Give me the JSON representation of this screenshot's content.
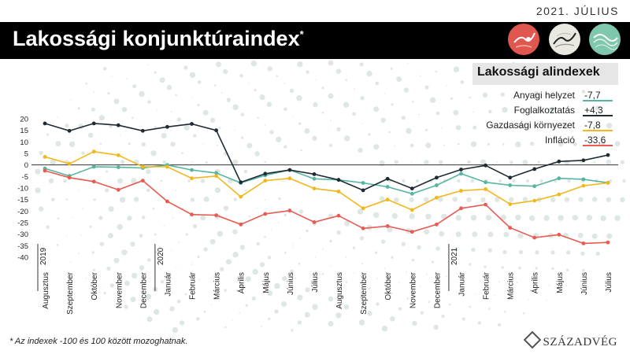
{
  "header": {
    "date": "2021. JÚLIUS",
    "title": "Lakossági konjunktúraindex",
    "title_mark": "*"
  },
  "badges": [
    {
      "icon": "thermometer-icon",
      "color": "#e0574f"
    },
    {
      "icon": "mountain-trend-icon",
      "color": "#e9e9e2"
    },
    {
      "icon": "wave-trend-icon",
      "color": "#7fc7ad"
    }
  ],
  "legend": {
    "title": "Lakossági alindexek",
    "items": [
      {
        "label": "Anyagi helyzet",
        "value": "-7,7",
        "color": "#55b5a0"
      },
      {
        "label": "Foglalkoztatás",
        "value": "+4,3",
        "color": "#1f2a33"
      },
      {
        "label": "Gazdasági környezet",
        "value": "-7,8",
        "color": "#f2b71c"
      },
      {
        "label": "Infláció",
        "value": "-33,6",
        "color": "#e85a52"
      }
    ]
  },
  "footnote": "* Az indexek -100 és 100 között mozoghatnak.",
  "brand": "SZÁZADVÉG",
  "chart_data": {
    "type": "line",
    "categories": [
      "Augusztus",
      "Szeptember",
      "Október",
      "November",
      "December",
      "Január",
      "Február",
      "Március",
      "Április",
      "Május",
      "Június",
      "Július",
      "Augusztus",
      "Szeptember",
      "Október",
      "November",
      "December",
      "Január",
      "Február",
      "Március",
      "Április",
      "Május",
      "Június",
      "Július"
    ],
    "year_labels": [
      {
        "label": "2019",
        "index": 0
      },
      {
        "label": "2020",
        "index": 5
      },
      {
        "label": "2021",
        "index": 17
      }
    ],
    "ylim": [
      -40,
      20
    ],
    "yticks": [
      20,
      15,
      10,
      5,
      0,
      -5,
      -10,
      -15,
      -20,
      -25,
      -30,
      -35,
      -40
    ],
    "series": [
      {
        "name": "Anyagi helyzet",
        "color": "#55b5a0",
        "values": [
          -1.5,
          -4.8,
          -0.8,
          -1.0,
          -1.3,
          0.0,
          -2.2,
          -3.5,
          -7.8,
          -4.5,
          -2.2,
          -6.0,
          -6.5,
          -7.8,
          -9.5,
          -12.5,
          -8.8,
          -3.8,
          -7.5,
          -8.8,
          -9.2,
          -5.8,
          -6.2,
          -7.7
        ]
      },
      {
        "name": "Foglalkoztatás",
        "color": "#1f2a33",
        "values": [
          18.0,
          14.8,
          18.0,
          17.2,
          14.8,
          16.5,
          17.8,
          15.0,
          -7.5,
          -3.8,
          -2.2,
          -4.0,
          -6.5,
          -11.0,
          -6.0,
          -10.2,
          -5.5,
          -2.0,
          -0.2,
          -5.5,
          -1.8,
          1.5,
          2.0,
          4.3
        ]
      },
      {
        "name": "Gazdasági környezet",
        "color": "#f2b71c",
        "values": [
          3.5,
          0.5,
          5.8,
          4.2,
          -0.8,
          -0.8,
          -5.8,
          -4.8,
          -13.8,
          -6.8,
          -5.8,
          -10.2,
          -11.5,
          -18.8,
          -15.0,
          -19.5,
          -14.2,
          -11.2,
          -10.5,
          -17.0,
          -15.5,
          -12.8,
          -9.0,
          -7.8
        ]
      },
      {
        "name": "Infláció",
        "color": "#e85a52",
        "values": [
          -2.5,
          -5.5,
          -7.2,
          -10.8,
          -6.8,
          -15.8,
          -21.5,
          -21.8,
          -25.8,
          -21.2,
          -19.8,
          -24.8,
          -22.0,
          -27.5,
          -26.5,
          -29.0,
          -25.8,
          -18.8,
          -17.2,
          -27.2,
          -31.5,
          -30.2,
          -34.0,
          -33.6
        ]
      }
    ]
  }
}
